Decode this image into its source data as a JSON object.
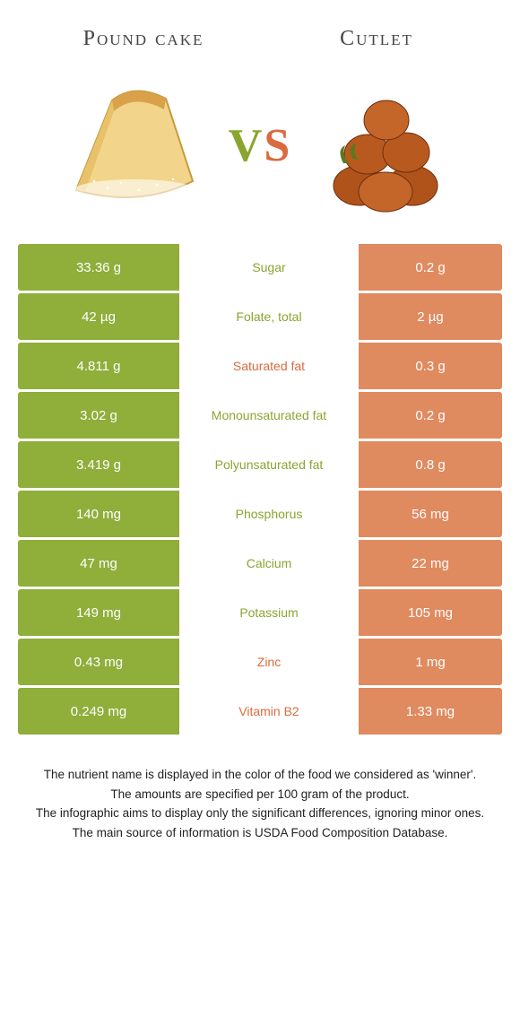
{
  "colors": {
    "green": "#8fae3a",
    "orange": "#e08a5f",
    "green_text": "#8aa52f",
    "orange_text": "#d96b3f",
    "bg": "#ffffff"
  },
  "header": {
    "left_title": "Pound cake",
    "right_title": "Cutlet",
    "vs_v": "V",
    "vs_s": "S"
  },
  "rows": [
    {
      "left": "33.36 g",
      "label": "Sugar",
      "right": "0.2 g",
      "winner": "left"
    },
    {
      "left": "42 µg",
      "label": "Folate, total",
      "right": "2 µg",
      "winner": "left"
    },
    {
      "left": "4.811 g",
      "label": "Saturated fat",
      "right": "0.3 g",
      "winner": "right"
    },
    {
      "left": "3.02 g",
      "label": "Monounsaturated fat",
      "right": "0.2 g",
      "winner": "left"
    },
    {
      "left": "3.419 g",
      "label": "Polyunsaturated fat",
      "right": "0.8 g",
      "winner": "left"
    },
    {
      "left": "140 mg",
      "label": "Phosphorus",
      "right": "56 mg",
      "winner": "left"
    },
    {
      "left": "47 mg",
      "label": "Calcium",
      "right": "22 mg",
      "winner": "left"
    },
    {
      "left": "149 mg",
      "label": "Potassium",
      "right": "105 mg",
      "winner": "left"
    },
    {
      "left": "0.43 mg",
      "label": "Zinc",
      "right": "1 mg",
      "winner": "right"
    },
    {
      "left": "0.249 mg",
      "label": "Vitamin B2",
      "right": "1.33 mg",
      "winner": "right"
    }
  ],
  "footer": {
    "l1": "The nutrient name is displayed in the color of the food we considered as 'winner'.",
    "l2": "The amounts are specified per 100 gram of the product.",
    "l3": "The infographic aims to display only the significant differences, ignoring minor ones.",
    "l4": "The main source of information is USDA Food Composition Database."
  }
}
